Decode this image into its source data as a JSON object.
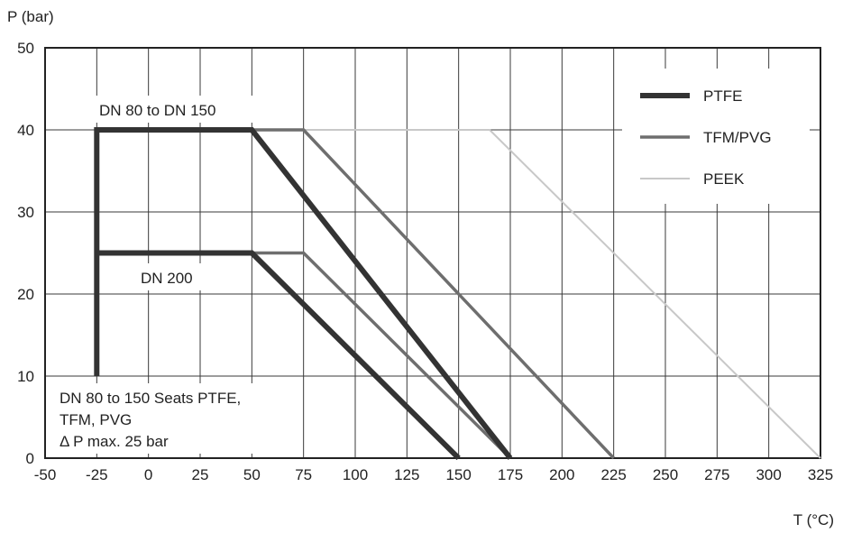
{
  "chart_data": {
    "type": "line",
    "ylabel": "P (bar)",
    "xlabel": "T (°C)",
    "xlim": [
      -50,
      325
    ],
    "ylim": [
      0,
      50
    ],
    "xticks": [
      -50,
      -25,
      0,
      25,
      50,
      75,
      100,
      125,
      150,
      175,
      200,
      225,
      250,
      275,
      300,
      325
    ],
    "yticks": [
      0,
      10,
      20,
      30,
      40,
      50
    ],
    "grid": true,
    "legend_position": "top-right",
    "series": [
      {
        "name": "PTFE",
        "color": "#333333",
        "stroke_weight": "thick",
        "lines": [
          {
            "x": [
              -25,
              -25,
              50,
              175
            ],
            "y": [
              10,
              40,
              40,
              0
            ]
          },
          {
            "x": [
              -25,
              50,
              150
            ],
            "y": [
              25,
              25,
              0
            ]
          }
        ]
      },
      {
        "name": "TFM/PVG",
        "color": "#6e6e6e",
        "stroke_weight": "medium",
        "lines": [
          {
            "x": [
              50,
              75,
              225
            ],
            "y": [
              40,
              40,
              0
            ]
          },
          {
            "x": [
              50,
              75,
              175
            ],
            "y": [
              25,
              25,
              0
            ]
          }
        ]
      },
      {
        "name": "PEEK",
        "color": "#c8c8c8",
        "stroke_weight": "thin",
        "lines": [
          {
            "x": [
              75,
              165,
              325
            ],
            "y": [
              40,
              40,
              0
            ]
          }
        ]
      }
    ],
    "annotations": [
      {
        "id": "dn80",
        "text": "DN 80 to DN 150",
        "x": -25,
        "y": 40
      },
      {
        "id": "dn200",
        "text": "DN 200",
        "x": -15,
        "y": 25
      },
      {
        "id": "note",
        "lines": [
          "DN 80 to 150 Seats PTFE,",
          "TFM, PVG",
          "Δ P max. 25 bar"
        ],
        "x": -48,
        "y": 8
      }
    ]
  }
}
